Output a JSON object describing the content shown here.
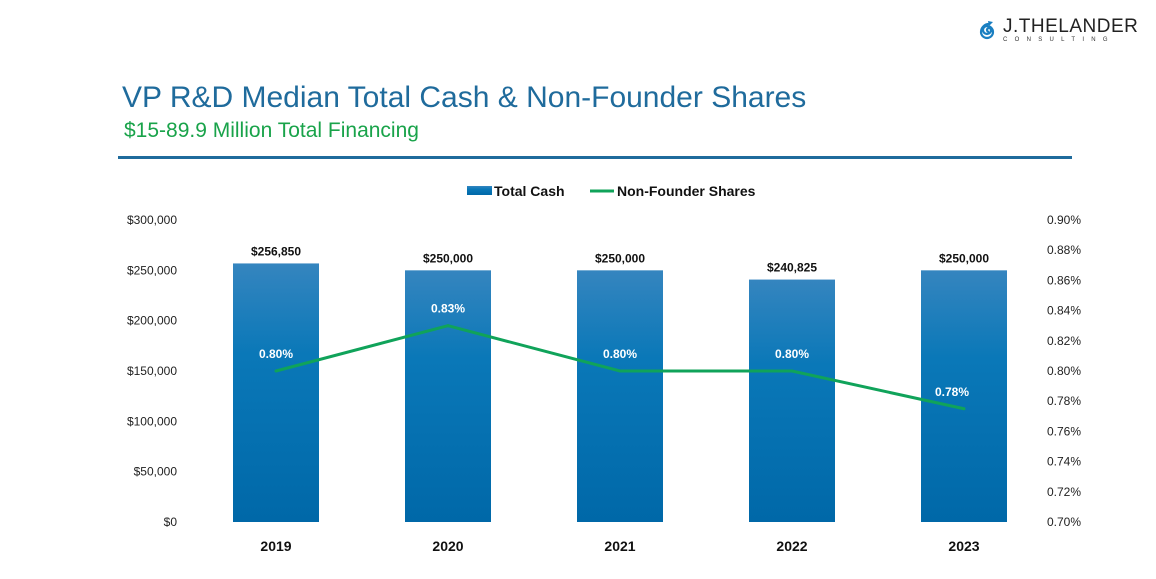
{
  "logo": {
    "name": "J.THELANDER",
    "sub": "CONSULTING"
  },
  "header": {
    "title": "VP R&D Median Total Cash & Non-Founder Shares",
    "subtitle": "$15-89.9 Million Total Financing"
  },
  "colors": {
    "bar_top": "#3585bf",
    "bar_bottom": "#0068a8",
    "line": "#10a35a",
    "title": "#1f6b9c",
    "subtitle": "#19a34a"
  },
  "chart_data": {
    "type": "bar+line",
    "categories": [
      "2019",
      "2020",
      "2021",
      "2022",
      "2023"
    ],
    "series": [
      {
        "name": "Total Cash",
        "type": "bar",
        "axis": "left",
        "values": [
          256850,
          250000,
          250000,
          240825,
          250000
        ],
        "labels": [
          "$256,850",
          "$250,000",
          "$250,000",
          "$240,825",
          "$250,000"
        ]
      },
      {
        "name": "Non-Founder Shares",
        "type": "line",
        "axis": "right",
        "values": [
          0.8,
          0.83,
          0.8,
          0.8,
          0.775
        ],
        "labels": [
          "0.80%",
          "0.83%",
          "0.80%",
          "0.80%",
          "0.78%"
        ]
      }
    ],
    "left_axis": {
      "range": [
        0,
        300000
      ],
      "ticks": [
        "$0",
        "$50,000",
        "$100,000",
        "$150,000",
        "$200,000",
        "$250,000",
        "$300,000"
      ]
    },
    "right_axis": {
      "range": [
        0.7,
        0.9
      ],
      "ticks": [
        "0.70%",
        "0.72%",
        "0.74%",
        "0.76%",
        "0.78%",
        "0.80%",
        "0.82%",
        "0.84%",
        "0.86%",
        "0.88%",
        "0.90%"
      ]
    },
    "legend": {
      "position": "top",
      "entries": [
        "Total Cash",
        "Non-Founder Shares"
      ]
    },
    "grid": false
  }
}
